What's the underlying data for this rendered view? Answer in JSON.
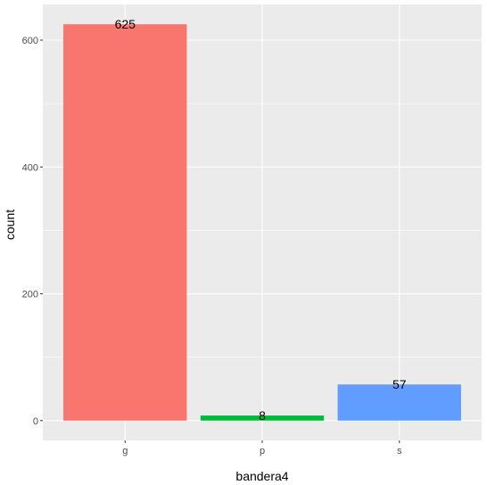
{
  "chart_data": {
    "type": "bar",
    "categories": [
      "g",
      "p",
      "s"
    ],
    "values": [
      625,
      8,
      57
    ],
    "data_labels": [
      "625",
      "8",
      "57"
    ],
    "colors": [
      "#F8766D",
      "#00BA38",
      "#619CFF"
    ],
    "xlabel": "bandera4",
    "ylabel": "count",
    "ylim": [
      -31.25,
      656.25
    ],
    "yticks": [
      0,
      200,
      400,
      600
    ],
    "ytick_labels": [
      "0",
      "200",
      "400",
      "600"
    ],
    "grid": true,
    "panel_background": "#EBEBEB",
    "grid_color": "#FFFFFF",
    "legend": "none"
  }
}
